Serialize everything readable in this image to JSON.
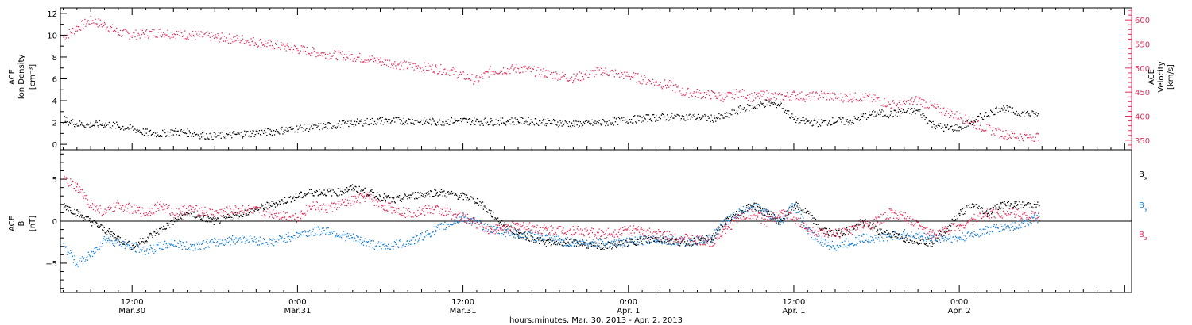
{
  "xaxis": {
    "title": "hours:minutes, Mar. 30, 2013 - Apr.  2, 2013",
    "ticks": [
      {
        "hm": "12:00",
        "day": "Mar.30",
        "t": 12
      },
      {
        "hm": "0:00",
        "day": "Mar.31",
        "t": 24
      },
      {
        "hm": "12:00",
        "day": "Mar.31",
        "t": 36
      },
      {
        "hm": "0:00",
        "day": "Apr. 1",
        "t": 48
      },
      {
        "hm": "12:00",
        "day": "Apr. 1",
        "t": 60
      },
      {
        "hm": "0:00",
        "day": "Apr. 2",
        "t": 72
      }
    ]
  },
  "chart_data": [
    {
      "type": "scatter",
      "title": "",
      "xlim": [
        6.8,
        84.5
      ],
      "ylabel_left": [
        "ACE",
        "Ion Density",
        "[cm⁻³]"
      ],
      "ylabel_right": [
        "ACE",
        "Velocity",
        "[km/s]"
      ],
      "ylim_left": [
        -0.5,
        12.5
      ],
      "ylim_right": [
        330,
        625
      ],
      "yticks_left": [
        0,
        2,
        4,
        6,
        8,
        10,
        12
      ],
      "yticks_right": [
        350,
        400,
        450,
        500,
        550,
        600
      ],
      "colors": {
        "density": "#000000",
        "velocity": "#e0305a"
      },
      "series": [
        {
          "axis": "left",
          "color": "#000000",
          "x": [
            7,
            8,
            9,
            10,
            11,
            12,
            13,
            14,
            15,
            16,
            17,
            18,
            20,
            22,
            24,
            26,
            28,
            30,
            32,
            34,
            36,
            38,
            40,
            42,
            44,
            46,
            48,
            50,
            52,
            54,
            55,
            56,
            57,
            58,
            59,
            60,
            61,
            62,
            63,
            64,
            65,
            66,
            67,
            68,
            69,
            70,
            71,
            72,
            73,
            74,
            75,
            76,
            77.8
          ],
          "values": [
            2.3,
            1.9,
            1.8,
            1.9,
            1.7,
            1.5,
            1.1,
            1.0,
            1.2,
            1.1,
            0.9,
            0.8,
            1.0,
            1.2,
            1.5,
            1.7,
            2.0,
            2.2,
            2.2,
            2.1,
            2.2,
            2.1,
            2.2,
            2.1,
            1.9,
            2.0,
            2.3,
            2.5,
            2.6,
            2.4,
            2.6,
            3.2,
            3.5,
            3.8,
            3.7,
            2.3,
            2.1,
            2.0,
            2.2,
            2.1,
            2.6,
            2.9,
            2.8,
            3.0,
            3.1,
            1.9,
            1.5,
            1.6,
            2.2,
            2.8,
            3.4,
            3.0,
            2.7
          ]
        },
        {
          "axis": "right",
          "color": "#e0305a",
          "x": [
            7,
            8,
            9,
            10,
            11,
            12,
            14,
            16,
            18,
            20,
            22,
            24,
            26,
            28,
            30,
            32,
            34,
            35,
            36,
            37,
            38,
            40,
            42,
            44,
            46,
            48,
            50,
            51,
            52,
            53,
            54,
            55,
            56,
            57,
            58,
            59,
            60,
            61,
            62,
            63,
            64,
            65,
            66,
            67,
            68,
            69,
            70,
            71,
            72,
            73,
            74,
            75,
            76,
            77.8
          ],
          "values": [
            565,
            585,
            600,
            590,
            575,
            570,
            575,
            570,
            565,
            560,
            550,
            540,
            530,
            525,
            515,
            505,
            500,
            495,
            485,
            475,
            495,
            500,
            490,
            480,
            495,
            485,
            470,
            465,
            450,
            448,
            445,
            440,
            450,
            440,
            445,
            440,
            445,
            440,
            445,
            440,
            440,
            440,
            435,
            425,
            425,
            435,
            420,
            410,
            400,
            385,
            375,
            365,
            360,
            358
          ]
        }
      ]
    },
    {
      "type": "scatter",
      "title": "",
      "xlim": [
        6.8,
        84.5
      ],
      "ylabel": [
        "ACE",
        "B",
        "[nT]"
      ],
      "ylim": [
        -8.5,
        8.5
      ],
      "yticks": [
        -5,
        0,
        5
      ],
      "yticklabels": [
        "−5",
        "0",
        "5"
      ],
      "series": [
        {
          "name": "Bx",
          "color": "#000000",
          "x": [
            7,
            8,
            9,
            10,
            11,
            12,
            13,
            14,
            15,
            16,
            18,
            20,
            22,
            24,
            25,
            26,
            27,
            28,
            29,
            30,
            31,
            32,
            34,
            36,
            37,
            38,
            39,
            40,
            41,
            42,
            44,
            46,
            48,
            50,
            52,
            54,
            55,
            56,
            57,
            58,
            59,
            60,
            61,
            62,
            63,
            64,
            65,
            66,
            68,
            70,
            71,
            72,
            73,
            74,
            75,
            76,
            77.8
          ],
          "values": [
            2,
            1,
            0,
            -1,
            -2,
            -3,
            -2,
            -1,
            0,
            1,
            0,
            1,
            2,
            3,
            3.5,
            3.5,
            3.5,
            4,
            3.5,
            3,
            2.5,
            3,
            3.5,
            3,
            2.5,
            1,
            -0.5,
            -1.5,
            -2,
            -2.5,
            -2.5,
            -3,
            -2.5,
            -2,
            -2.5,
            -2,
            0,
            1,
            2,
            1,
            0,
            2,
            1,
            -1,
            -1.5,
            -1,
            0,
            -1,
            -2,
            -2.5,
            -1,
            1,
            2,
            1,
            2,
            2,
            2
          ]
        },
        {
          "name": "By",
          "color": "#1a7fd6",
          "x": [
            7,
            8,
            9,
            10,
            11,
            12,
            13,
            14,
            15,
            16,
            18,
            20,
            22,
            24,
            26,
            28,
            30,
            32,
            34,
            36,
            38,
            40,
            42,
            44,
            46,
            48,
            50,
            52,
            54,
            55,
            56,
            57,
            58,
            59,
            60,
            61,
            62,
            63,
            64,
            65,
            66,
            68,
            70,
            72,
            74,
            76,
            77.8
          ],
          "values": [
            -3,
            -5,
            -4,
            -2,
            -2.5,
            -3,
            -3.5,
            -3,
            -2.5,
            -3,
            -2.5,
            -2,
            -2.5,
            -1.5,
            -1,
            -2,
            -3,
            -2.5,
            -1,
            0.5,
            -1,
            -1.5,
            -2,
            -2.5,
            -2.5,
            -2.5,
            -2,
            -2.5,
            -2,
            0,
            1,
            2,
            1,
            0,
            2,
            -1,
            -2.5,
            -3,
            -2.5,
            -2,
            -2,
            -1.5,
            -2,
            -2,
            -1,
            -0.5,
            0.5
          ]
        },
        {
          "name": "Bz",
          "color": "#e0305a",
          "x": [
            7,
            8,
            9,
            10,
            11,
            12,
            13,
            14,
            15,
            16,
            18,
            20,
            22,
            24,
            25,
            26,
            27,
            28,
            29,
            30,
            32,
            34,
            36,
            38,
            40,
            42,
            44,
            46,
            48,
            50,
            52,
            54,
            55,
            56,
            57,
            58,
            59,
            60,
            61,
            62,
            63,
            64,
            65,
            66,
            67,
            68,
            69,
            70,
            72,
            74,
            76,
            77.8
          ],
          "values": [
            5,
            4,
            2,
            1,
            2,
            1.5,
            1,
            2,
            1,
            1.5,
            1,
            1.5,
            1,
            0.5,
            2,
            1.5,
            2,
            2.5,
            3,
            2,
            1,
            1.5,
            0.5,
            -1,
            -0.5,
            -1,
            -1,
            -1.5,
            -1,
            -1.5,
            -2,
            -2.5,
            -1,
            0.5,
            1,
            0,
            1,
            0.5,
            -1,
            -1.5,
            -1.5,
            -1,
            -0.5,
            0,
            1,
            0.5,
            -0.5,
            -1.5,
            -0.5,
            1,
            1,
            0.5
          ]
        }
      ],
      "legend": [
        {
          "label": "B",
          "sub": "x",
          "color": "#000000"
        },
        {
          "label": "B",
          "sub": "y",
          "color": "#1a7fd6"
        },
        {
          "label": "B",
          "sub": "z",
          "color": "#e0305a"
        }
      ]
    }
  ]
}
